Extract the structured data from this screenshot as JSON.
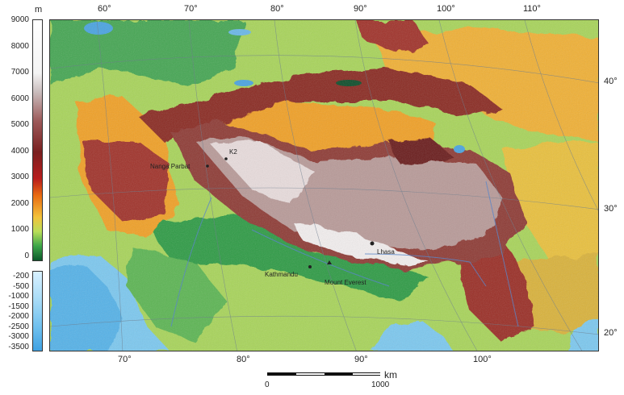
{
  "legend": {
    "unit": "m",
    "land_ticks": [
      "9000",
      "8000",
      "7000",
      "6000",
      "5000",
      "4000",
      "3000",
      "2000",
      "1000",
      "0"
    ],
    "sea_ticks": [
      "-200",
      "-500",
      "-1000",
      "-1500",
      "-2000",
      "-2500",
      "-3000",
      "-3500"
    ]
  },
  "longitudes_top": [
    "60°",
    "70°",
    "80°",
    "90°",
    "100°",
    "110°"
  ],
  "longitudes_bottom": [
    "70°",
    "80°",
    "90°",
    "100°"
  ],
  "latitudes": [
    "40°",
    "30°",
    "20°"
  ],
  "places": [
    {
      "id": "nanga-parbat",
      "label": "Nanga Parbat"
    },
    {
      "id": "k2",
      "label": "K2"
    },
    {
      "id": "lhasa",
      "label": "Lhasa"
    },
    {
      "id": "kathmandu",
      "label": "Kathmandu"
    },
    {
      "id": "mount-everest",
      "label": "Mount Everest"
    }
  ],
  "scale": {
    "unit": "km",
    "start": "0",
    "end": "1000"
  },
  "colors": {
    "ocean": "#7cc8ef",
    "lowland": "#2e9b45",
    "plain": "#a8d45a",
    "upland": "#f0a028",
    "mountain": "#8a2a24",
    "plateau": "#b89a98",
    "snow": "#f2eeee",
    "lake": "#4aa3e0"
  }
}
